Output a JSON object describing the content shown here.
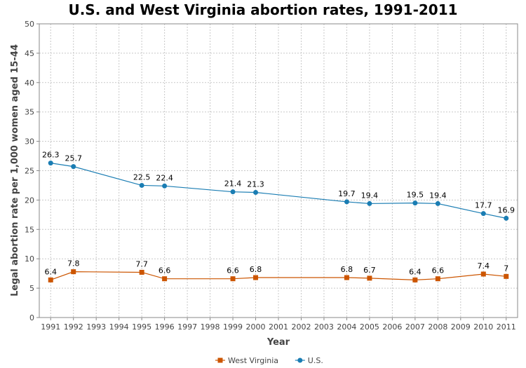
{
  "chart_data": {
    "type": "line",
    "title": "U.S. and West Virginia abortion rates, 1991-2011",
    "xlabel": "Year",
    "ylabel": "Legal abortion rate per 1,000 women aged 15-44",
    "ylim": [
      0,
      50
    ],
    "yticks": [
      0,
      5,
      10,
      15,
      20,
      25,
      30,
      35,
      40,
      45,
      50
    ],
    "xlim": [
      1991,
      2011
    ],
    "xticks": [
      1991,
      1992,
      1993,
      1994,
      1995,
      1996,
      1997,
      1998,
      1999,
      2000,
      2001,
      2002,
      2003,
      2004,
      2005,
      2006,
      2007,
      2008,
      2009,
      2010,
      2011
    ],
    "grid": true,
    "legend_position": "bottom-center",
    "series": [
      {
        "name": "West Virginia",
        "color": "#cc5500",
        "marker": "square",
        "x": [
          1991,
          1992,
          1995,
          1996,
          1999,
          2000,
          2004,
          2005,
          2007,
          2008,
          2010,
          2011
        ],
        "values": [
          6.4,
          7.8,
          7.7,
          6.6,
          6.6,
          6.8,
          6.8,
          6.7,
          6.4,
          6.6,
          7.4,
          7
        ],
        "labels": [
          "6.4",
          "7.8",
          "7.7",
          "6.6",
          "6.6",
          "6.8",
          "6.8",
          "6.7",
          "6.4",
          "6.6",
          "7.4",
          "7"
        ]
      },
      {
        "name": "U.S.",
        "color": "#1a7db3",
        "marker": "circle",
        "x": [
          1991,
          1992,
          1995,
          1996,
          1999,
          2000,
          2004,
          2005,
          2007,
          2008,
          2010,
          2011
        ],
        "values": [
          26.3,
          25.7,
          22.5,
          22.4,
          21.4,
          21.3,
          19.7,
          19.4,
          19.5,
          19.4,
          17.7,
          16.9
        ],
        "labels": [
          "26.3",
          "25.7",
          "22.5",
          "22.4",
          "21.4",
          "21.3",
          "19.7",
          "19.4",
          "19.5",
          "19.4",
          "17.7",
          "16.9"
        ]
      }
    ]
  }
}
